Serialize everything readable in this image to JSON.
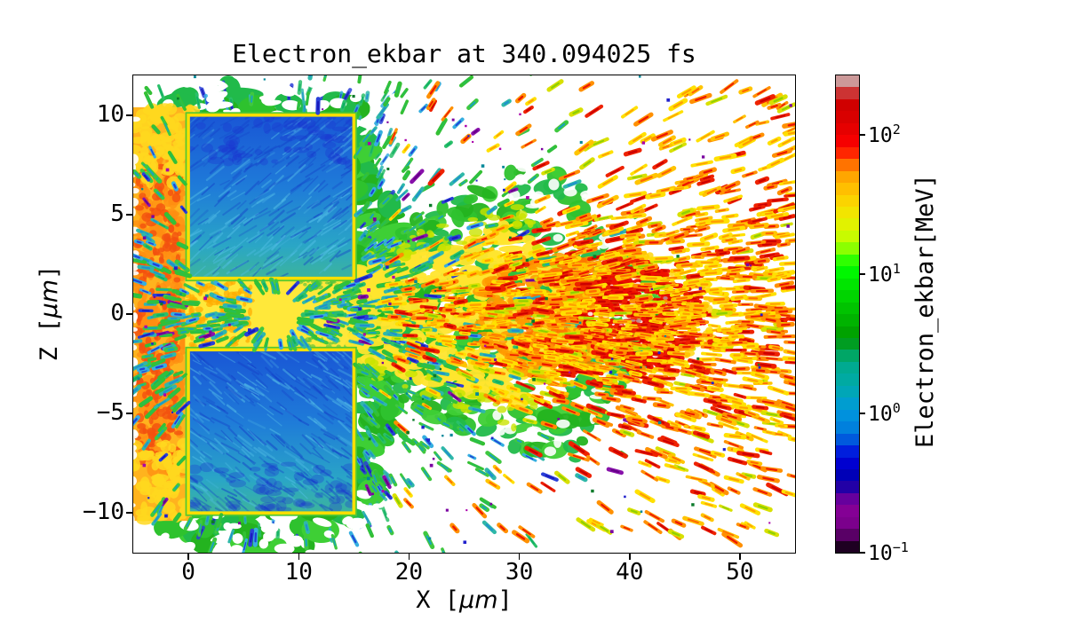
{
  "figure": {
    "title": "Electron_ekbar at 340.094025 fs",
    "background": "#ffffff"
  },
  "axes": {
    "xlabel_pre": "X [",
    "xlabel_mu": "μm",
    "xlabel_post": "]",
    "ylabel_pre": "Z [",
    "ylabel_mu": "μm",
    "ylabel_post": "]"
  },
  "colorbar": {
    "label": "Electron_ekbar[MeV]",
    "scale": "log",
    "vmin": 0.1,
    "vmax": 267,
    "n_segments": 40,
    "ticks": [
      {
        "value": 100,
        "base": "10",
        "exp": "2"
      },
      {
        "value": 10,
        "base": "10",
        "exp": "1"
      },
      {
        "value": 1,
        "base": "10",
        "exp": "0"
      },
      {
        "value": 0.1,
        "base": "10",
        "exp": "−1"
      }
    ],
    "cmap_control_points": [
      [
        0.0,
        "#000000"
      ],
      [
        0.05,
        "#770088"
      ],
      [
        0.1,
        "#880099"
      ],
      [
        0.15,
        "#0000aa"
      ],
      [
        0.2,
        "#0000dd"
      ],
      [
        0.25,
        "#0077dd"
      ],
      [
        0.3,
        "#0099dd"
      ],
      [
        0.35,
        "#00aaaa"
      ],
      [
        0.4,
        "#00aa88"
      ],
      [
        0.45,
        "#009900"
      ],
      [
        0.5,
        "#00bb00"
      ],
      [
        0.55,
        "#00dd00"
      ],
      [
        0.6,
        "#00ff00"
      ],
      [
        0.65,
        "#bbff00"
      ],
      [
        0.7,
        "#eeee00"
      ],
      [
        0.75,
        "#ffcc00"
      ],
      [
        0.8,
        "#ff9900"
      ],
      [
        0.85,
        "#ff0000"
      ],
      [
        0.9,
        "#dd0000"
      ],
      [
        0.95,
        "#cc0000"
      ],
      [
        1.0,
        "#cccccc"
      ]
    ]
  },
  "chart_data": {
    "type": "heatmap",
    "title": "Electron_ekbar at 340.094025 fs",
    "time_fs": 340.094025,
    "xlabel": "X [μm]",
    "ylabel": "Z [μm]",
    "colorbar_label": "Electron_ekbar[MeV]",
    "xlim": [
      -5,
      55
    ],
    "ylim": [
      -12,
      12
    ],
    "xticks": [
      0,
      10,
      20,
      30,
      40,
      50
    ],
    "xtick_labels": [
      "0",
      "10",
      "20",
      "30",
      "40",
      "50"
    ],
    "yticks": [
      10,
      5,
      0,
      -5,
      -10
    ],
    "ytick_labels": [
      "10",
      "5",
      "0",
      "−5",
      "−10"
    ],
    "value_scale": "log",
    "value_range_MeV": [
      0.1,
      267
    ],
    "grid": false,
    "background": "#ffffff",
    "description": "2D particle-in-cell snapshot of electron mean kinetic energy: two cold (blue, ~1 MeV) target blocks spanning X 0-15 um at Z 1.8-10 um and Z -10..-1.8 um, separated by a hot yellow channel |Z|<1.8 um; an orange-red slab (~30-60 MeV) at X<0; a yellow-orange electron jet exits the channel and broadens to the right with a dense red cluster (>100 MeV) near X 36-46 um, Z +-2.5 um; green/teal streak spray (~2-10 MeV) radiates outward on a white (no-data) background.",
    "seed": 340094025,
    "structures": {
      "cloud": {
        "cx": 6.5,
        "cz": 0,
        "rx": 12.8,
        "rz": 11.8,
        "exp": 3,
        "colors": [
          "#2ec22e",
          "#24b31f",
          "#3ecf35",
          "#21ba4a"
        ]
      },
      "left_slab": {
        "x0": -5.2,
        "x1": 0.3,
        "z0": -10.4,
        "z1": 10.4,
        "base": "#ffb31e",
        "speck_red": "#f2500f",
        "speck_orange": "#ff8d12",
        "speck_yellow": "#ffd81e"
      },
      "channel": {
        "x0": -0.3,
        "x1": 15.5,
        "z0": -1.9,
        "z1": 1.9,
        "base": "#ffe83a",
        "speck_orange": "#ffab00",
        "speck_green": "#49c03c"
      },
      "blocks": [
        {
          "x0": 0,
          "x1": 15,
          "z0": 1.8,
          "z1": 10,
          "side": "upper"
        },
        {
          "x0": 0,
          "x1": 15,
          "z0": -10,
          "z1": -1.8,
          "side": "lower"
        }
      ],
      "block_grad": [
        "#1956d6",
        "#1f7cd8",
        "#2aa6c6",
        "#3cb49c"
      ],
      "block_tex": {
        "dark": "#1440c8",
        "light": "#55c0e8",
        "navy": "#1a2fd0"
      },
      "block_rim": {
        "yellow": "#ffdf00",
        "green": "#55c832"
      },
      "jet_green": {
        "half_width": [
          [
            15,
            3.2
          ],
          [
            34,
            8.5
          ],
          [
            42.5,
            0
          ]
        ],
        "color": "#2ec22e"
      },
      "jet_yellow": {
        "half_width": [
          [
            15,
            2.3
          ],
          [
            30,
            4.7
          ],
          [
            36.5,
            0
          ]
        ],
        "color": "#ffe52e",
        "fringe": "#c9e400"
      },
      "orange_band": {
        "cx": 33,
        "cz": 0,
        "rx": 7,
        "rz": 3.2,
        "color": "#ff9a00",
        "color2": "#ff7000"
      },
      "hot_cluster": {
        "cx": 41,
        "cz": -0.2,
        "rx": 5.4,
        "rz": 2.6,
        "outer": "#ee1000",
        "core": "#cf0000",
        "gray": "#bc9193",
        "rim": "#ffd300"
      }
    },
    "palettes": {
      "cool": [
        [
          "#3fc83f",
          "#18a4b8",
          0.28
        ],
        [
          "#34c034",
          "#28bf4f",
          0.24
        ],
        [
          "#2fb8a8",
          "#1f8fd0",
          0.18
        ],
        [
          "#35aee0",
          "#2040d8",
          0.12
        ],
        [
          "#2bc06a",
          "#0fae64",
          0.08
        ],
        [
          "#2a3fd8",
          "#1a1abc",
          0.06
        ],
        [
          "#8811aa",
          "#660088",
          0.04
        ]
      ],
      "warm": [
        [
          "#ffe000",
          "#ffa000",
          0.3
        ],
        [
          "#ffc400",
          "#ff6a00",
          0.17
        ],
        [
          "#ff9000",
          "#ee1800",
          0.28
        ],
        [
          "#ee2200",
          "#cc0000",
          0.17
        ],
        [
          "#d8e000",
          "#8fd000",
          0.08
        ]
      ],
      "specks": [
        "#2121cc",
        "#7a00a0",
        "#aa00aa",
        "#008899",
        "#0a7a2a"
      ]
    }
  }
}
